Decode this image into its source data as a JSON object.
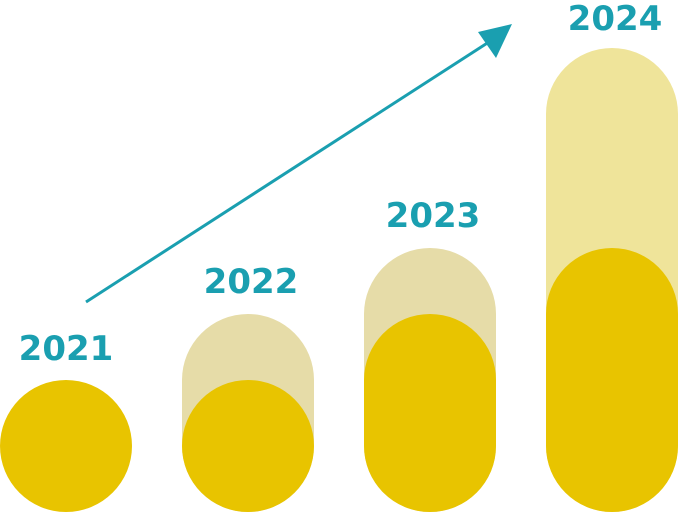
{
  "labels": [
    "2021",
    "2022",
    "2023",
    "2024"
  ]
}
